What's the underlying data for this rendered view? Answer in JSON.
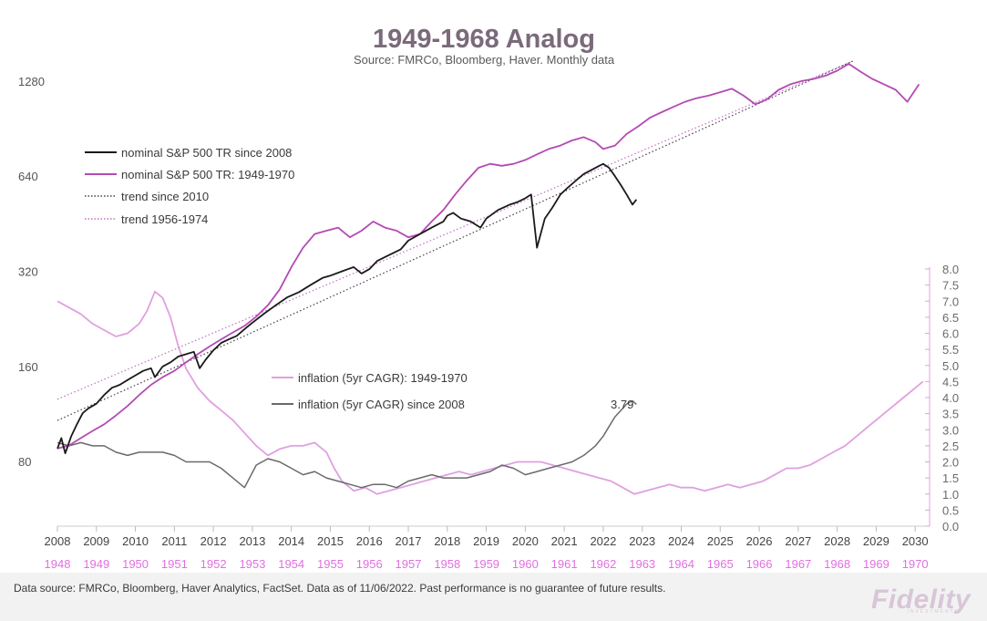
{
  "chart_data": {
    "type": "line",
    "title": "1949-1968 Analog",
    "subtitle": "Source: FMRCo, Bloomberg, Haver.  Monthly data",
    "x_axis_bottom": {
      "ticks": [
        "2008",
        "2009",
        "2010",
        "2011",
        "2012",
        "2013",
        "2014",
        "2015",
        "2016",
        "2017",
        "2018",
        "2019",
        "2020",
        "2021",
        "2022",
        "2023",
        "2024",
        "2025",
        "2026",
        "2027",
        "2028",
        "2029",
        "2030"
      ],
      "range": [
        2008,
        2030.3
      ]
    },
    "x_axis_analog": {
      "ticks": [
        "1948",
        "1949",
        "1950",
        "1951",
        "1952",
        "1953",
        "1954",
        "1955",
        "1956",
        "1957",
        "1958",
        "1959",
        "1960",
        "1961",
        "1962",
        "1963",
        "1964",
        "1965",
        "1966",
        "1967",
        "1968",
        "1969",
        "1970"
      ]
    },
    "y_axis_left": {
      "scale": "log",
      "ticks": [
        "80",
        "160",
        "320",
        "640",
        "1280"
      ],
      "range": [
        50,
        1550
      ]
    },
    "y_axis_right": {
      "ticks": [
        "0.0",
        "0.5",
        "1.0",
        "1.5",
        "2.0",
        "2.5",
        "3.0",
        "3.5",
        "4.0",
        "4.5",
        "5.0",
        "5.5",
        "6.0",
        "6.5",
        "7.0",
        "7.5",
        "8.0"
      ],
      "range": [
        0,
        8
      ]
    },
    "legend_top": [
      {
        "label": "nominal S&P 500 TR since 2008",
        "color": "#1a1a1a",
        "style": "solid"
      },
      {
        "label": "nominal S&P 500 TR: 1949-1970",
        "color": "#b44ab4",
        "style": "solid"
      },
      {
        "label": "trend since 2010",
        "color": "#4a3a4a",
        "style": "dotted"
      },
      {
        "label": "trend 1956-1974",
        "color": "#c070c0",
        "style": "dotted"
      }
    ],
    "legend_bottom": [
      {
        "label": "inflation (5yr CAGR): 1949-1970",
        "color": "#e0a0e0",
        "style": "solid"
      },
      {
        "label": "inflation (5yr CAGR) since 2008",
        "color": "#6a6a6a",
        "style": "solid"
      }
    ],
    "annotation": "3.79",
    "series": [
      {
        "name": "nominal S&P 500 TR since 2008",
        "axis": "left",
        "x": [
          2008.0,
          2008.1,
          2008.2,
          2008.35,
          2008.5,
          2008.65,
          2008.8,
          2009.0,
          2009.2,
          2009.4,
          2009.6,
          2009.8,
          2010.0,
          2010.2,
          2010.4,
          2010.5,
          2010.7,
          2010.9,
          2011.1,
          2011.3,
          2011.5,
          2011.65,
          2011.8,
          2012.0,
          2012.2,
          2012.4,
          2012.6,
          2012.8,
          2013.0,
          2013.3,
          2013.6,
          2013.9,
          2014.2,
          2014.5,
          2014.8,
          2015.0,
          2015.3,
          2015.6,
          2015.8,
          2016.0,
          2016.2,
          2016.5,
          2016.8,
          2017.0,
          2017.3,
          2017.6,
          2017.9,
          2018.0,
          2018.15,
          2018.35,
          2018.6,
          2018.85,
          2019.0,
          2019.3,
          2019.6,
          2019.8,
          2020.0,
          2020.15,
          2020.3,
          2020.5,
          2020.7,
          2020.9,
          2021.1,
          2021.3,
          2021.5,
          2021.7,
          2021.9,
          2022.0,
          2022.15,
          2022.3,
          2022.45,
          2022.6,
          2022.75,
          2022.85
        ],
        "values": [
          88,
          95,
          85,
          96,
          105,
          114,
          118,
          122,
          130,
          137,
          140,
          145,
          150,
          155,
          158,
          148,
          160,
          165,
          172,
          175,
          178,
          158,
          168,
          180,
          190,
          195,
          200,
          210,
          220,
          235,
          250,
          265,
          275,
          290,
          305,
          310,
          320,
          330,
          315,
          325,
          345,
          360,
          375,
          400,
          420,
          440,
          460,
          480,
          490,
          470,
          460,
          440,
          470,
          500,
          520,
          530,
          545,
          560,
          380,
          470,
          510,
          560,
          590,
          620,
          650,
          670,
          690,
          700,
          680,
          640,
          600,
          560,
          520,
          540
        ]
      },
      {
        "name": "nominal S&P 500 TR: 1949-1970",
        "axis": "left",
        "x": [
          2008.0,
          2008.3,
          2008.6,
          2008.9,
          2009.2,
          2009.5,
          2009.8,
          2010.1,
          2010.4,
          2010.7,
          2011.0,
          2011.3,
          2011.6,
          2011.9,
          2012.2,
          2012.5,
          2012.8,
          2013.1,
          2013.4,
          2013.7,
          2014.0,
          2014.3,
          2014.6,
          2014.9,
          2015.2,
          2015.5,
          2015.8,
          2016.1,
          2016.4,
          2016.7,
          2017.0,
          2017.3,
          2017.6,
          2017.9,
          2018.2,
          2018.5,
          2018.8,
          2019.1,
          2019.4,
          2019.7,
          2020.0,
          2020.3,
          2020.6,
          2020.9,
          2021.2,
          2021.5,
          2021.8,
          2022.0,
          2022.3,
          2022.6,
          2022.9,
          2023.2,
          2023.5,
          2023.8,
          2024.1,
          2024.4,
          2024.7,
          2025.0,
          2025.3,
          2025.6,
          2025.9,
          2026.2,
          2026.5,
          2026.8,
          2027.1,
          2027.4,
          2027.7,
          2028.0,
          2028.3,
          2028.6,
          2028.9,
          2029.2,
          2029.5,
          2029.8,
          2030.1
        ],
        "values": [
          88,
          90,
          95,
          100,
          105,
          112,
          120,
          130,
          140,
          148,
          155,
          165,
          175,
          185,
          195,
          205,
          215,
          230,
          250,
          280,
          330,
          380,
          420,
          430,
          440,
          410,
          430,
          460,
          440,
          430,
          410,
          420,
          460,
          500,
          560,
          620,
          680,
          700,
          690,
          700,
          720,
          750,
          780,
          800,
          830,
          850,
          820,
          780,
          800,
          870,
          920,
          980,
          1020,
          1060,
          1100,
          1130,
          1150,
          1180,
          1210,
          1150,
          1080,
          1120,
          1200,
          1250,
          1280,
          1300,
          1330,
          1380,
          1450,
          1370,
          1300,
          1250,
          1200,
          1100,
          1250
        ]
      },
      {
        "name": "trend since 2010",
        "axis": "left",
        "style": "dotted",
        "x": [
          2008.0,
          2028.4
        ],
        "values": [
          108,
          1480
        ]
      },
      {
        "name": "trend 1956-1974",
        "axis": "left",
        "style": "dotted",
        "x": [
          2008.0,
          2028.4
        ],
        "values": [
          126,
          1480
        ]
      },
      {
        "name": "inflation (5yr CAGR): 1949-1970",
        "axis": "right",
        "x": [
          2008.0,
          2008.3,
          2008.6,
          2008.9,
          2009.2,
          2009.5,
          2009.8,
          2010.1,
          2010.3,
          2010.5,
          2010.7,
          2010.9,
          2011.1,
          2011.3,
          2011.6,
          2011.9,
          2012.2,
          2012.5,
          2012.8,
          2013.1,
          2013.4,
          2013.7,
          2014.0,
          2014.3,
          2014.6,
          2014.9,
          2015.1,
          2015.3,
          2015.6,
          2015.9,
          2016.2,
          2016.5,
          2016.8,
          2017.1,
          2017.4,
          2017.7,
          2018.0,
          2018.3,
          2018.6,
          2018.9,
          2019.2,
          2019.5,
          2019.8,
          2020.1,
          2020.4,
          2020.7,
          2021.0,
          2021.3,
          2021.6,
          2021.9,
          2022.2,
          2022.5,
          2022.8,
          2023.1,
          2023.4,
          2023.7,
          2024.0,
          2024.3,
          2024.6,
          2024.9,
          2025.2,
          2025.5,
          2025.8,
          2026.1,
          2026.4,
          2026.7,
          2027.0,
          2027.3,
          2027.6,
          2027.9,
          2028.2,
          2028.5,
          2028.8,
          2029.1,
          2029.4,
          2029.7,
          2030.0,
          2030.2
        ],
        "values": [
          7.0,
          6.8,
          6.6,
          6.3,
          6.1,
          5.9,
          6.0,
          6.3,
          6.7,
          7.3,
          7.1,
          6.5,
          5.6,
          4.9,
          4.3,
          3.9,
          3.6,
          3.3,
          2.9,
          2.5,
          2.2,
          2.4,
          2.5,
          2.5,
          2.6,
          2.3,
          1.8,
          1.4,
          1.1,
          1.2,
          1.0,
          1.1,
          1.2,
          1.3,
          1.4,
          1.5,
          1.6,
          1.7,
          1.6,
          1.7,
          1.8,
          1.9,
          2.0,
          2.0,
          2.0,
          1.9,
          1.8,
          1.7,
          1.6,
          1.5,
          1.4,
          1.2,
          1.0,
          1.1,
          1.2,
          1.3,
          1.2,
          1.2,
          1.1,
          1.2,
          1.3,
          1.2,
          1.3,
          1.4,
          1.6,
          1.8,
          1.8,
          1.9,
          2.1,
          2.3,
          2.5,
          2.8,
          3.1,
          3.4,
          3.7,
          4.0,
          4.3,
          4.5
        ]
      },
      {
        "name": "inflation (5yr CAGR) since 2008",
        "axis": "right",
        "x": [
          2008.0,
          2008.3,
          2008.6,
          2008.9,
          2009.2,
          2009.5,
          2009.8,
          2010.1,
          2010.4,
          2010.7,
          2011.0,
          2011.3,
          2011.6,
          2011.9,
          2012.2,
          2012.5,
          2012.8,
          2013.1,
          2013.4,
          2013.7,
          2014.0,
          2014.3,
          2014.6,
          2014.9,
          2015.2,
          2015.5,
          2015.8,
          2016.1,
          2016.4,
          2016.7,
          2017.0,
          2017.3,
          2017.6,
          2017.9,
          2018.2,
          2018.5,
          2018.8,
          2019.1,
          2019.4,
          2019.7,
          2020.0,
          2020.3,
          2020.6,
          2020.9,
          2021.2,
          2021.5,
          2021.8,
          2022.0,
          2022.15,
          2022.3,
          2022.45,
          2022.6,
          2022.75,
          2022.85
        ],
        "values": [
          2.6,
          2.5,
          2.6,
          2.5,
          2.5,
          2.3,
          2.2,
          2.3,
          2.3,
          2.3,
          2.2,
          2.0,
          2.0,
          2.0,
          1.8,
          1.5,
          1.2,
          1.9,
          2.1,
          2.0,
          1.8,
          1.6,
          1.7,
          1.5,
          1.4,
          1.3,
          1.2,
          1.3,
          1.3,
          1.2,
          1.4,
          1.5,
          1.6,
          1.5,
          1.5,
          1.5,
          1.6,
          1.7,
          1.9,
          1.8,
          1.6,
          1.7,
          1.8,
          1.9,
          2.0,
          2.2,
          2.5,
          2.8,
          3.1,
          3.4,
          3.6,
          3.8,
          3.9,
          3.79
        ]
      }
    ]
  },
  "footer": {
    "source_note": "Data source: FMRCo, Bloomberg, Haver Analytics, FactSet. Data as of 11/06/2022. Past performance is no guarantee of future results.",
    "logo": "Fidelity",
    "logo_sub": "INVESTMENTS"
  },
  "colors": {
    "sp_since_2008": "#1a1a1a",
    "sp_1949": "#b44ab4",
    "trend_2010": "#4a3a4a",
    "trend_1956": "#c070c0",
    "infl_1949": "#e0a0e0",
    "infl_2008": "#6a6a6a",
    "title": "#7a6a7a",
    "analog_axis": "#e070e0",
    "right_axis": "#6a6a6a"
  }
}
